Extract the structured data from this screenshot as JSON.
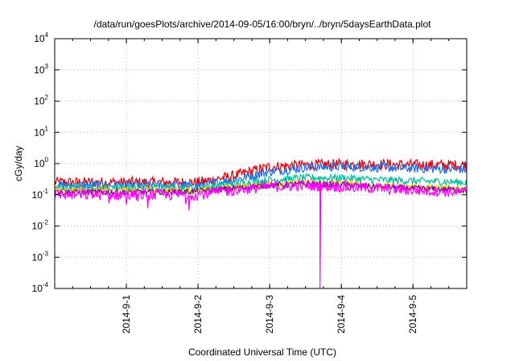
{
  "chart_data": {
    "type": "line",
    "title": "/data/run/goesPlots/archive/2014-09-05/16:00/bryn/../bryn/5daysEarthData.plot",
    "xlabel": "Coordinated Universal Time (UTC)",
    "ylabel": "cGy/day",
    "x_ticks": [
      "2014-9-1",
      "2014-9-2",
      "2014-9-3",
      "2014-9-4",
      "2014-9-5"
    ],
    "x_range": [
      "2014-08-31T00:00",
      "2014-09-05T18:00"
    ],
    "y_scale": "log",
    "ylim": [
      0.0001,
      10000
    ],
    "y_ticks": [
      {
        "value": 0.0001,
        "base": "10",
        "exp": "-4"
      },
      {
        "value": 0.001,
        "base": "10",
        "exp": "-3"
      },
      {
        "value": 0.01,
        "base": "10",
        "exp": "-2"
      },
      {
        "value": 0.1,
        "base": "10",
        "exp": "-1"
      },
      {
        "value": 1,
        "base": "10",
        "exp": "0"
      },
      {
        "value": 10,
        "base": "10",
        "exp": "1"
      },
      {
        "value": 100,
        "base": "10",
        "exp": "2"
      },
      {
        "value": 1000,
        "base": "10",
        "exp": "3"
      },
      {
        "value": 10000,
        "base": "10",
        "exp": "4"
      }
    ],
    "grid": true,
    "x_dates": [
      "2014-08-31T00:00",
      "2014-09-01T00:00",
      "2014-09-01T12:00",
      "2014-09-02T00:00",
      "2014-09-02T12:00",
      "2014-09-03T00:00",
      "2014-09-03T12:00",
      "2014-09-04T00:00",
      "2014-09-04T12:00",
      "2014-09-05T00:00",
      "2014-09-05T18:00"
    ],
    "series": [
      {
        "color": "#e8000b",
        "values": [
          0.25,
          0.25,
          0.25,
          0.25,
          0.4,
          0.8,
          0.9,
          0.95,
          0.95,
          0.9,
          0.9
        ],
        "noise": 0.35
      },
      {
        "color": "#1f6fe8",
        "values": [
          0.2,
          0.2,
          0.2,
          0.2,
          0.3,
          0.55,
          0.75,
          0.8,
          0.75,
          0.7,
          0.65
        ],
        "noise": 0.3
      },
      {
        "color": "#00bfa0",
        "values": [
          0.17,
          0.16,
          0.17,
          0.17,
          0.22,
          0.3,
          0.35,
          0.35,
          0.3,
          0.28,
          0.25
        ],
        "noise": 0.25
      },
      {
        "color": "#e8d000",
        "values": [
          0.14,
          0.14,
          0.14,
          0.14,
          0.18,
          0.22,
          0.25,
          0.24,
          0.2,
          0.18,
          0.16
        ],
        "noise": 0.2
      },
      {
        "color": "#6a0d8a",
        "values": [
          0.12,
          0.12,
          0.12,
          0.13,
          0.16,
          0.2,
          0.22,
          0.21,
          0.18,
          0.16,
          0.14
        ],
        "noise": 0.2
      },
      {
        "color": "#ff00ff",
        "values": [
          0.1,
          0.1,
          0.1,
          0.1,
          0.14,
          0.18,
          0.2,
          0.18,
          0.16,
          0.14,
          0.12
        ],
        "noise": 0.35
      }
    ],
    "dropout": {
      "date": "2014-09-03T17:00",
      "value": 0.0001,
      "color": "#ff00ff"
    }
  }
}
